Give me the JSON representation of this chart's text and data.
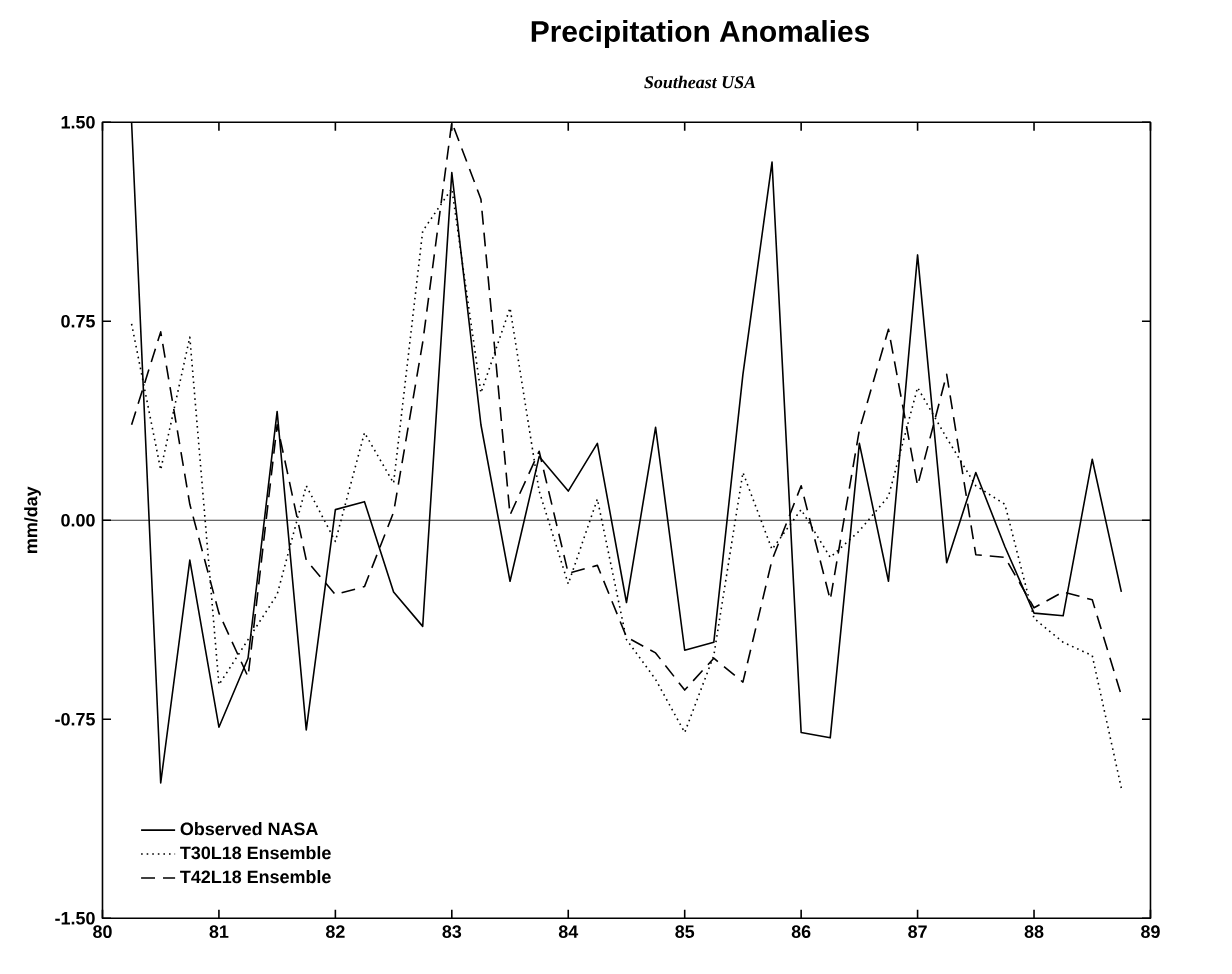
{
  "chart_data": {
    "type": "line",
    "title": "Precipitation Anomalies",
    "subtitle": "Southeast USA",
    "ylabel": "mm/day",
    "x": [
      80.25,
      80.5,
      80.75,
      81,
      81.25,
      81.5,
      81.75,
      82,
      82.25,
      82.5,
      82.75,
      83,
      83.25,
      83.5,
      83.75,
      84,
      84.25,
      84.5,
      84.75,
      85,
      85.25,
      85.5,
      85.75,
      86,
      86.25,
      86.5,
      86.75,
      87,
      87.25,
      87.5,
      87.75,
      88,
      88.25,
      88.5,
      88.75
    ],
    "series": [
      {
        "name": "Observed NASA",
        "color": "#000000",
        "line_style": "solid",
        "values": [
          1.5,
          -0.99,
          -0.15,
          -0.78,
          -0.52,
          0.41,
          -0.79,
          0.04,
          0.07,
          -0.27,
          -0.4,
          1.31,
          0.36,
          -0.23,
          0.24,
          0.11,
          0.29,
          -0.31,
          0.35,
          -0.49,
          -0.46,
          0.55,
          1.35,
          -0.8,
          -0.82,
          0.29,
          -0.23,
          1.0,
          -0.16,
          0.18,
          -0.1,
          -0.35,
          -0.36,
          0.23,
          -0.27
        ]
      },
      {
        "name": "T30L18 Ensemble",
        "color": "#000000",
        "line_style": "dotted",
        "values": [
          0.74,
          0.19,
          0.69,
          -0.62,
          -0.45,
          -0.28,
          0.13,
          -0.08,
          0.33,
          0.14,
          1.09,
          1.25,
          0.48,
          0.8,
          0.11,
          -0.24,
          0.08,
          -0.45,
          -0.6,
          -0.8,
          -0.51,
          0.18,
          -0.11,
          0.04,
          -0.14,
          -0.04,
          0.09,
          0.5,
          0.31,
          0.13,
          0.06,
          -0.37,
          -0.46,
          -0.51,
          -1.01
        ]
      },
      {
        "name": "T42L18 Ensemble",
        "color": "#000000",
        "line_style": "dashed",
        "values": [
          0.36,
          0.71,
          0.06,
          -0.35,
          -0.59,
          0.36,
          -0.15,
          -0.28,
          -0.25,
          0.03,
          0.67,
          1.5,
          1.21,
          0.02,
          0.26,
          -0.2,
          -0.17,
          -0.44,
          -0.5,
          -0.64,
          -0.52,
          -0.61,
          -0.15,
          0.13,
          -0.3,
          0.34,
          0.72,
          0.13,
          0.55,
          -0.13,
          -0.14,
          -0.33,
          -0.27,
          -0.3,
          -0.66
        ]
      }
    ],
    "xlim": [
      80,
      89
    ],
    "xticks": [
      80,
      81,
      82,
      83,
      84,
      85,
      86,
      87,
      88,
      89
    ],
    "ylim": [
      -1.5,
      1.5
    ],
    "yticks": [
      {
        "value": -1.5,
        "label": "-1.50"
      },
      {
        "value": -0.75,
        "label": "-0.75"
      },
      {
        "value": 0,
        "label": "0.00"
      },
      {
        "value": 0.75,
        "label": "0.75"
      },
      {
        "value": 1.5,
        "label": "1.50"
      }
    ],
    "ref_lines": [
      {
        "axis": "y",
        "value": 0,
        "color": "#000000",
        "line_style": "solid"
      }
    ],
    "legend": "bottom left",
    "grid": false,
    "marker": "none"
  }
}
